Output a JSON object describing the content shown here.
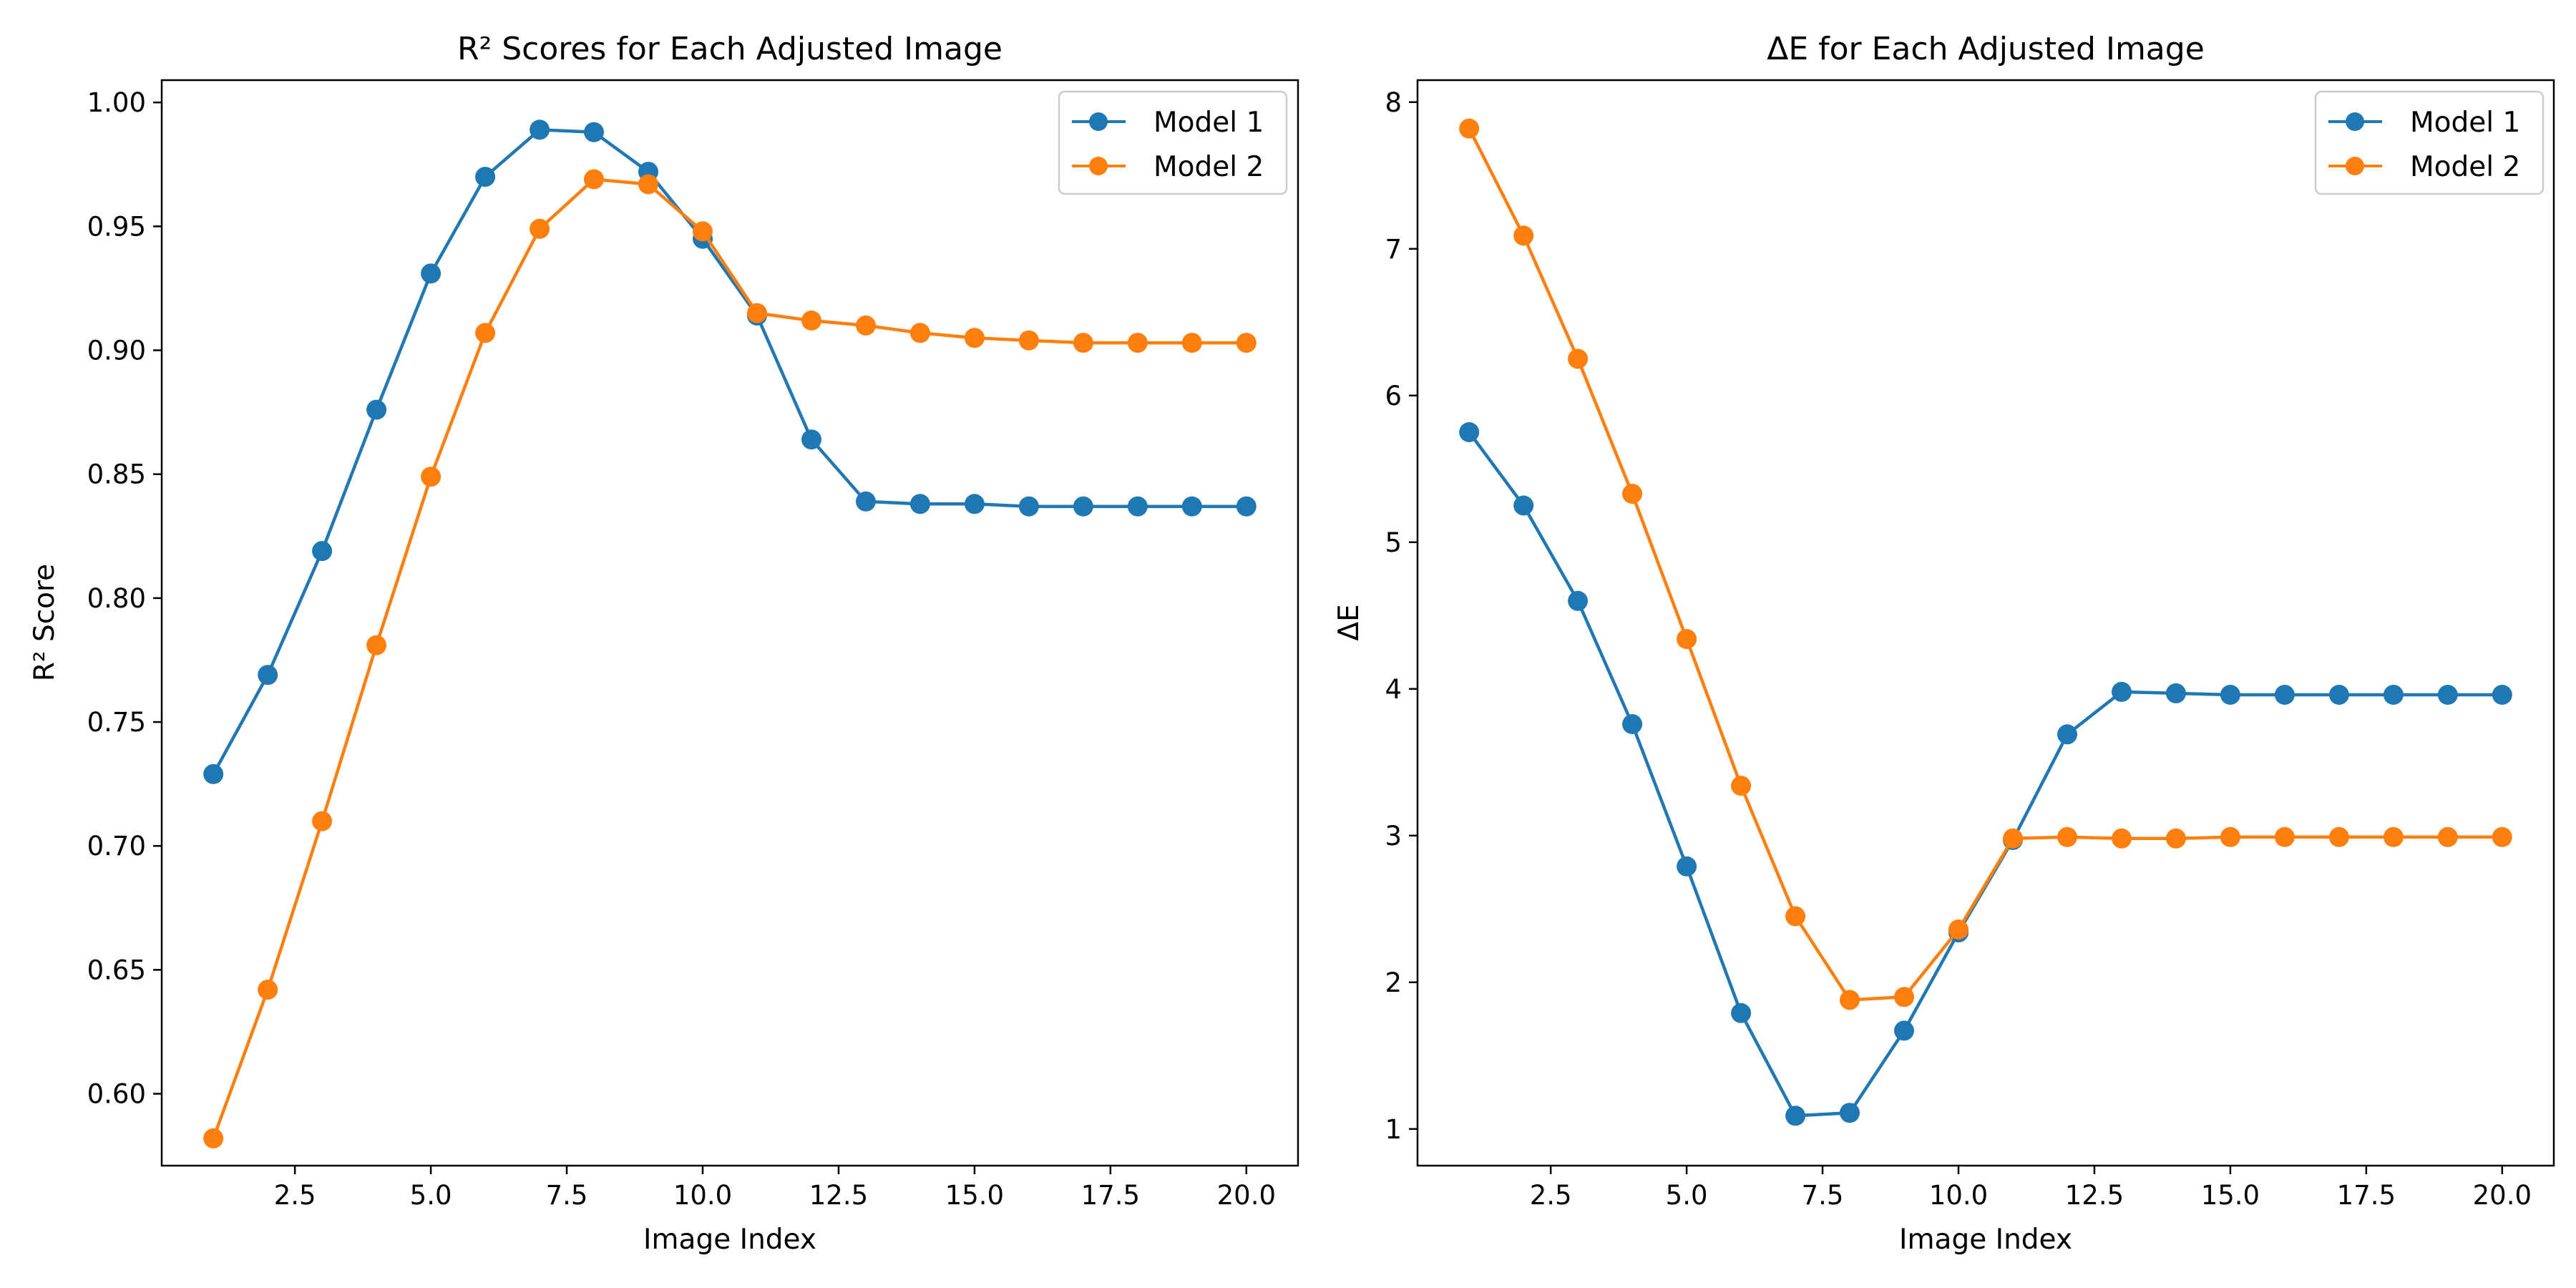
{
  "chart_data": [
    {
      "type": "line",
      "title": "R² Scores for Each Adjusted Image",
      "xlabel": "Image Index",
      "ylabel": "R² Score",
      "xlim": [
        0.05,
        20.95
      ],
      "ylim": [
        0.571,
        1.009
      ],
      "xticks": [
        2.5,
        5.0,
        7.5,
        10.0,
        12.5,
        15.0,
        17.5,
        20.0
      ],
      "xtick_labels": [
        "2.5",
        "5.0",
        "7.5",
        "10.0",
        "12.5",
        "15.0",
        "17.5",
        "20.0"
      ],
      "yticks": [
        0.6,
        0.65,
        0.7,
        0.75,
        0.8,
        0.85,
        0.9,
        0.95,
        1.0
      ],
      "ytick_labels": [
        "0.60",
        "0.65",
        "0.70",
        "0.75",
        "0.80",
        "0.85",
        "0.90",
        "0.95",
        "1.00"
      ],
      "grid": false,
      "legend_position": "top-right",
      "x": [
        1,
        2,
        3,
        4,
        5,
        6,
        7,
        8,
        9,
        10,
        11,
        12,
        13,
        14,
        15,
        16,
        17,
        18,
        19,
        20
      ],
      "series": [
        {
          "name": "Model 1",
          "color": "#1f77b4",
          "values": [
            0.729,
            0.769,
            0.819,
            0.876,
            0.931,
            0.97,
            0.989,
            0.988,
            0.972,
            0.945,
            0.914,
            0.864,
            0.839,
            0.838,
            0.838,
            0.837,
            0.837,
            0.837,
            0.837,
            0.837
          ]
        },
        {
          "name": "Model 2",
          "color": "#ff7f0e",
          "values": [
            0.582,
            0.642,
            0.71,
            0.781,
            0.849,
            0.907,
            0.949,
            0.969,
            0.967,
            0.948,
            0.915,
            0.912,
            0.91,
            0.907,
            0.905,
            0.904,
            0.903,
            0.903,
            0.903,
            0.903
          ]
        }
      ]
    },
    {
      "type": "line",
      "title": "ΔE for Each Adjusted Image",
      "xlabel": "Image Index",
      "ylabel": "ΔE",
      "xlim": [
        0.05,
        20.95
      ],
      "ylim": [
        0.75,
        8.15
      ],
      "xticks": [
        2.5,
        5.0,
        7.5,
        10.0,
        12.5,
        15.0,
        17.5,
        20.0
      ],
      "xtick_labels": [
        "2.5",
        "5.0",
        "7.5",
        "10.0",
        "12.5",
        "15.0",
        "17.5",
        "20.0"
      ],
      "yticks": [
        1,
        2,
        3,
        4,
        5,
        6,
        7,
        8
      ],
      "ytick_labels": [
        "1",
        "2",
        "3",
        "4",
        "5",
        "6",
        "7",
        "8"
      ],
      "grid": false,
      "legend_position": "top-right",
      "x": [
        1,
        2,
        3,
        4,
        5,
        6,
        7,
        8,
        9,
        10,
        11,
        12,
        13,
        14,
        15,
        16,
        17,
        18,
        19,
        20
      ],
      "series": [
        {
          "name": "Model 1",
          "color": "#1f77b4",
          "values": [
            5.75,
            5.25,
            4.6,
            3.76,
            2.79,
            1.79,
            1.09,
            1.11,
            1.67,
            2.34,
            2.97,
            3.69,
            3.98,
            3.97,
            3.96,
            3.96,
            3.96,
            3.96,
            3.96,
            3.96
          ]
        },
        {
          "name": "Model 2",
          "color": "#ff7f0e",
          "values": [
            7.82,
            7.09,
            6.25,
            5.33,
            4.34,
            3.34,
            2.45,
            1.88,
            1.9,
            2.36,
            2.98,
            2.99,
            2.98,
            2.98,
            2.99,
            2.99,
            2.99,
            2.99,
            2.99,
            2.99
          ]
        }
      ]
    }
  ]
}
